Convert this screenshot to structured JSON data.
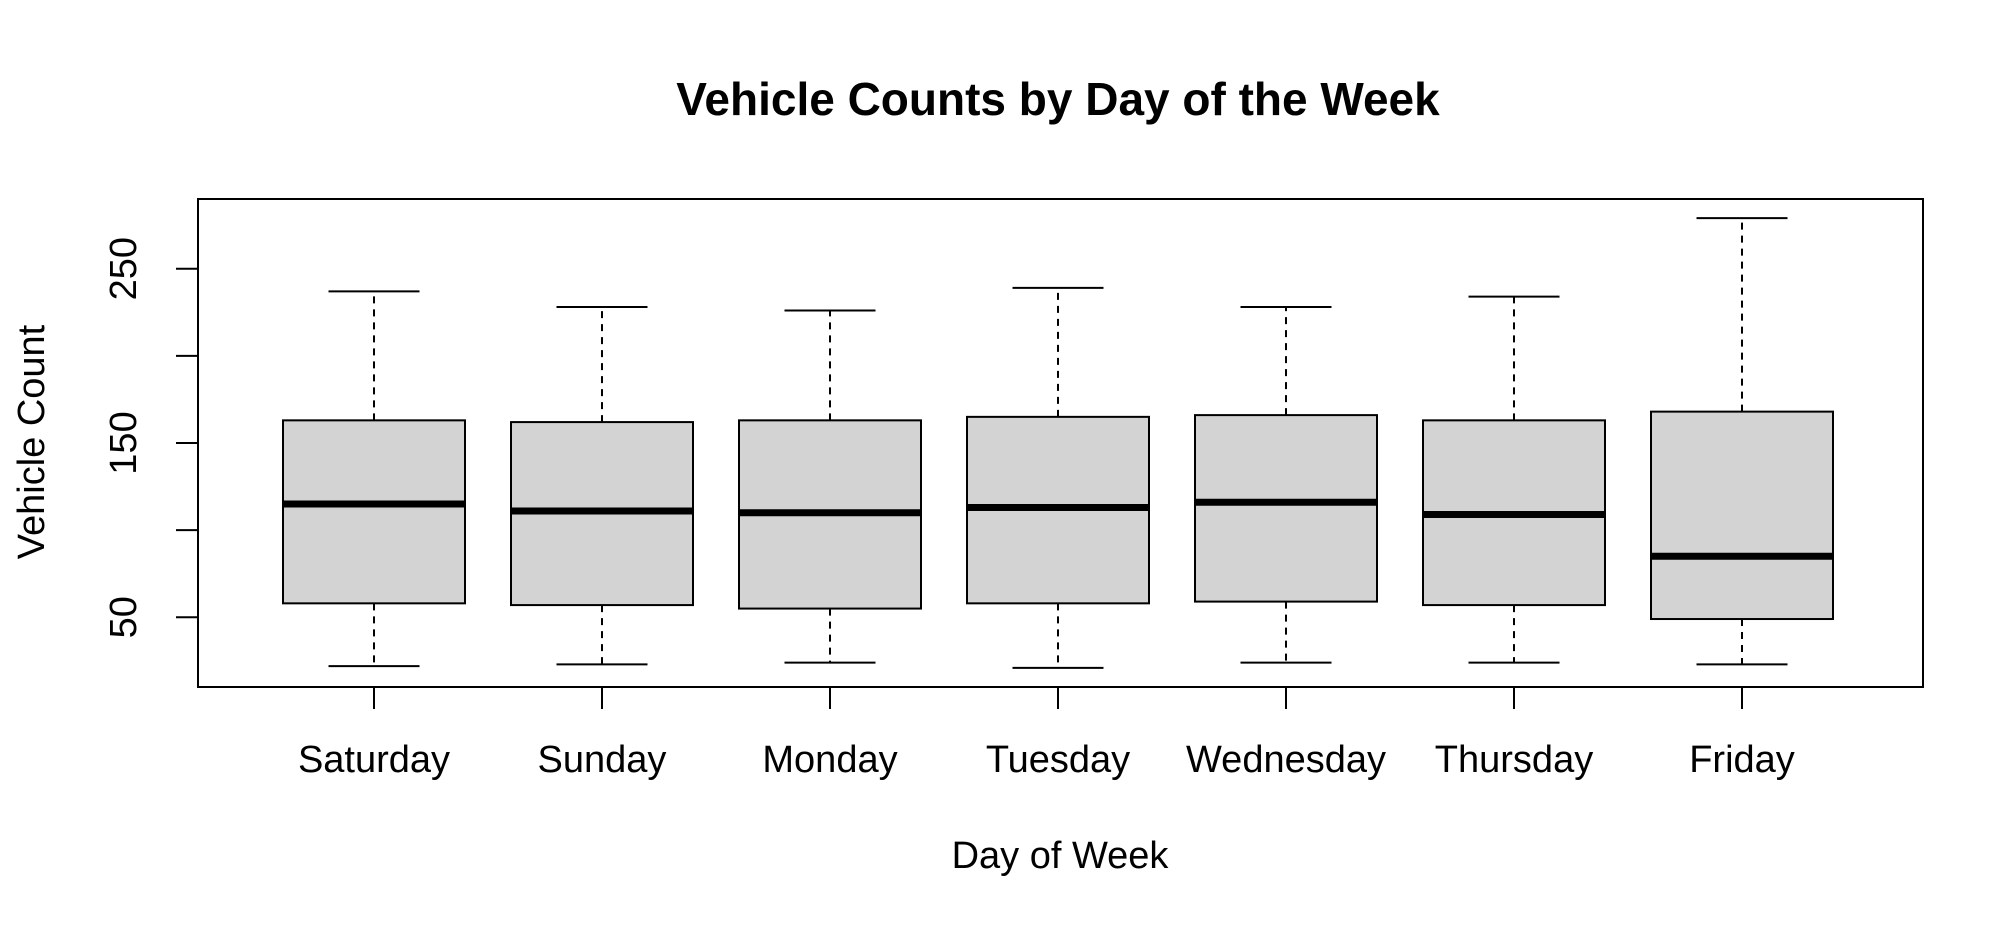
{
  "chart_data": {
    "type": "boxplot",
    "title": "Vehicle Counts by Day of the Week",
    "xlabel": "Day of Week",
    "ylabel": "Vehicle Count",
    "ylim": [
      10,
      290
    ],
    "yticks": [
      50,
      100,
      150,
      200,
      250
    ],
    "yticklabels": [
      "50",
      "",
      "150",
      "",
      "250"
    ],
    "grid": false,
    "categories": [
      "Saturday",
      "Sunday",
      "Monday",
      "Tuesday",
      "Wednesday",
      "Thursday",
      "Friday"
    ],
    "boxes": [
      {
        "category": "Saturday",
        "min": 22,
        "q1": 58,
        "median": 115,
        "q3": 163,
        "max": 237
      },
      {
        "category": "Sunday",
        "min": 23,
        "q1": 57,
        "median": 111,
        "q3": 162,
        "max": 228
      },
      {
        "category": "Monday",
        "min": 24,
        "q1": 55,
        "median": 110,
        "q3": 163,
        "max": 226
      },
      {
        "category": "Tuesday",
        "min": 21,
        "q1": 58,
        "median": 113,
        "q3": 165,
        "max": 239
      },
      {
        "category": "Wednesday",
        "min": 24,
        "q1": 59,
        "median": 116,
        "q3": 166,
        "max": 228
      },
      {
        "category": "Thursday",
        "min": 24,
        "q1": 57,
        "median": 109,
        "q3": 163,
        "max": 234
      },
      {
        "category": "Friday",
        "min": 23,
        "q1": 49,
        "median": 85,
        "q3": 168,
        "max": 279
      }
    ],
    "colors": {
      "box_fill": "#d3d3d3",
      "stroke": "#000000"
    }
  }
}
